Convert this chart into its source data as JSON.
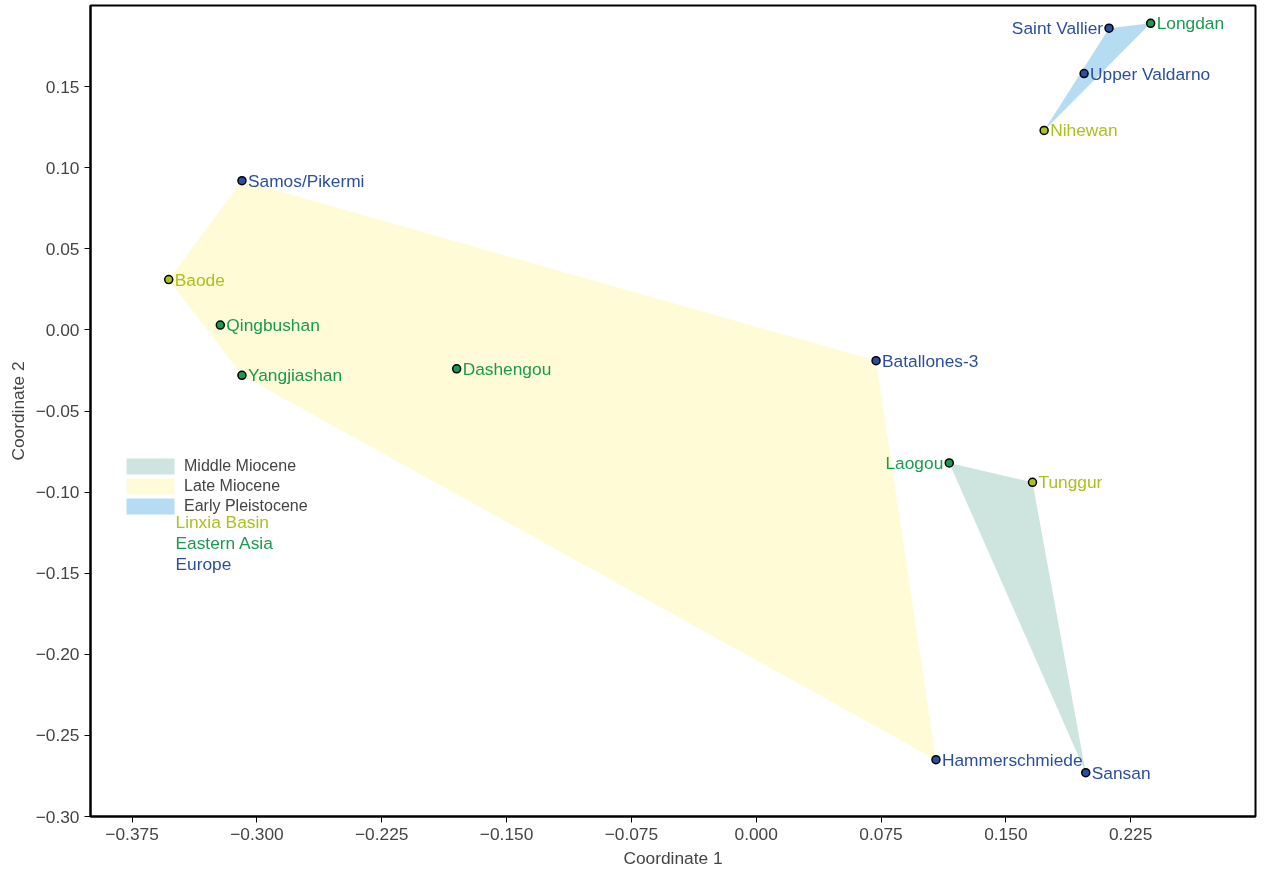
{
  "chart_data": {
    "type": "scatter",
    "xlabel": "Coordinate 1",
    "ylabel": "Coordinate 2",
    "xlim": [
      -0.4,
      0.3
    ],
    "ylim": [
      -0.3,
      0.2
    ],
    "xticks": [
      {
        "value": -0.375,
        "label": "−0.375"
      },
      {
        "value": -0.3,
        "label": "−0.300"
      },
      {
        "value": -0.225,
        "label": "−0.225"
      },
      {
        "value": -0.15,
        "label": "−0.150"
      },
      {
        "value": -0.075,
        "label": "−0.075"
      },
      {
        "value": 0,
        "label": "0.000"
      },
      {
        "value": 0.075,
        "label": "0.075"
      },
      {
        "value": 0.15,
        "label": "0.150"
      },
      {
        "value": 0.225,
        "label": "0.225"
      }
    ],
    "yticks": [
      {
        "value": -0.3,
        "label": "−0.30"
      },
      {
        "value": -0.25,
        "label": "−0.25"
      },
      {
        "value": -0.2,
        "label": "−0.20"
      },
      {
        "value": -0.15,
        "label": "−0.15"
      },
      {
        "value": -0.1,
        "label": "−0.10"
      },
      {
        "value": -0.05,
        "label": "−0.05"
      },
      {
        "value": 0,
        "label": "0.00"
      },
      {
        "value": 0.05,
        "label": "0.05"
      },
      {
        "value": 0.1,
        "label": "0.10"
      },
      {
        "value": 0.15,
        "label": "0.15"
      }
    ],
    "grid": false,
    "legend": "left",
    "series": [
      {
        "type": "area",
        "name": "Middle Miocene",
        "color": "#5aa796",
        "x": [
          0.116,
          0.166,
          0.198
        ],
        "values": [
          -0.082,
          -0.094,
          -0.273
        ]
      },
      {
        "type": "area",
        "name": "Late Miocene",
        "color": "#fff27a",
        "x": [
          -0.309,
          0.072,
          0.108,
          -0.309,
          -0.353
        ],
        "values": [
          0.092,
          -0.019,
          -0.265,
          -0.028,
          0.031
        ]
      },
      {
        "type": "area",
        "name": "Early Pleistocene",
        "color": "#0a8ad6",
        "x": [
          0.212,
          0.237,
          0.173
        ],
        "values": [
          0.186,
          0.189,
          0.123
        ]
      },
      {
        "marker": "circle",
        "name": "Linxia Basin",
        "color": "#a8c21e",
        "x": [
          -0.353,
          0.173,
          0.166
        ],
        "values": [
          0.031,
          0.123,
          -0.094
        ],
        "value_labels": [
          "Baode",
          "Nihewan",
          "Tunggur"
        ]
      },
      {
        "marker": "circle",
        "name": "Eastern Asia",
        "color": "#1a9a50",
        "x": [
          0.237,
          -0.322,
          -0.309,
          -0.18,
          0.116
        ],
        "values": [
          0.189,
          0.003,
          -0.028,
          -0.024,
          -0.082
        ],
        "value_labels": [
          "Longdan",
          "Qingbushan",
          "Yangjiashan",
          "Dashengou",
          "Laogou"
        ]
      },
      {
        "marker": "circle",
        "name": "Europe",
        "color": "#2a4f9e",
        "x": [
          0.212,
          0.197,
          -0.309,
          0.072,
          0.108,
          0.198
        ],
        "values": [
          0.186,
          0.158,
          0.092,
          -0.019,
          -0.265,
          -0.273
        ],
        "value_labels": [
          "Saint Vallier",
          "Upper Valdarno",
          "Samos/Pikermi",
          "Batallones-3",
          "Hammerschmiede",
          "Sansan"
        ]
      }
    ]
  }
}
